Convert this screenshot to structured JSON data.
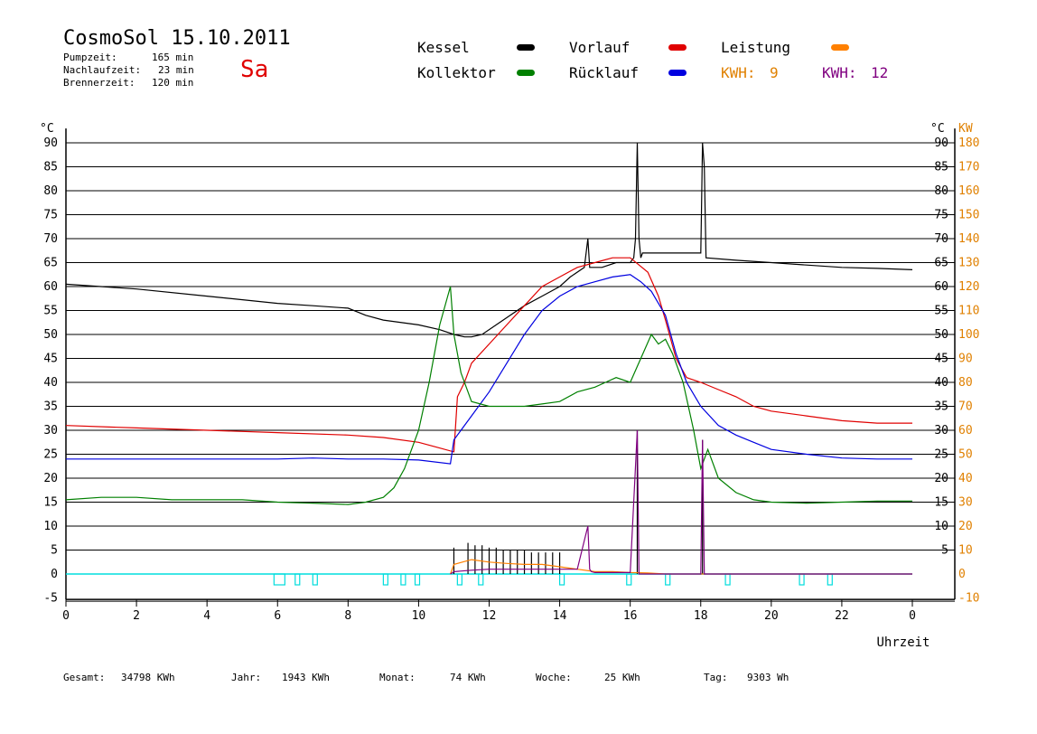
{
  "header": {
    "title": "CosmoSol 15.10.2011",
    "day": "Sa",
    "pump_label": "Pumpzeit:",
    "pump_value": "165 min",
    "nachlauf_label": "Nachlaufzeit:",
    "nachlauf_value": "23 min",
    "brenner_label": "Brennerzeit:",
    "brenner_value": "120 min"
  },
  "legend": {
    "kessel": "Kessel",
    "kollektor": "Kollektor",
    "vorlauf": "Vorlauf",
    "ruecklauf": "Rücklauf",
    "leistung": "Leistung",
    "kwh1_label": "KWH:",
    "kwh1_value": "9",
    "kwh2_label": "KWH:",
    "kwh2_value": "12"
  },
  "footer": {
    "gesamt_label": "Gesamt:",
    "gesamt_value": "34798 KWh",
    "jahr_label": "Jahr:",
    "jahr_value": "1943 KWh",
    "monat_label": "Monat:",
    "monat_value": "74 KWh",
    "woche_label": "Woche:",
    "woche_value": "25 KWh",
    "tag_label": "Tag:",
    "tag_value": "9303 Wh"
  },
  "colors": {
    "kessel": "#000000",
    "vorlauf": "#e00000",
    "ruecklauf": "#0000e0",
    "kollektor": "#008000",
    "leistung": "#ff8000",
    "kwh2": "#800080",
    "pump_marks": "#00dddd",
    "right_axis": "#e08000"
  },
  "chart_data": {
    "type": "line",
    "title": "CosmoSol 15.10.2011",
    "xlabel": "Uhrzeit",
    "ylabel_left": "°C",
    "ylabel_right": "KW",
    "ylim": [
      -5,
      93
    ],
    "xlim": [
      0,
      24
    ],
    "grid": true,
    "left_ticks": [
      "-5",
      "0",
      "5",
      "10",
      "15",
      "20",
      "25",
      "30",
      "35",
      "40",
      "45",
      "50",
      "55",
      "60",
      "65",
      "70",
      "75",
      "80",
      "85",
      "90"
    ],
    "right_ticks_c": [
      "5",
      "10",
      "15",
      "20",
      "25",
      "30",
      "35",
      "40",
      "45",
      "50",
      "55",
      "60",
      "65",
      "70",
      "75",
      "80",
      "85",
      "90"
    ],
    "right_ticks_kw": [
      "-10",
      "0",
      "10",
      "20",
      "30",
      "40",
      "50",
      "60",
      "70",
      "80",
      "90",
      "100",
      "110",
      "120",
      "130",
      "140",
      "150",
      "160",
      "170",
      "180"
    ],
    "x_ticks": [
      "0",
      "2",
      "4",
      "6",
      "8",
      "10",
      "12",
      "14",
      "16",
      "18",
      "20",
      "22",
      "0"
    ],
    "series": [
      {
        "name": "Kessel",
        "color": "#000000",
        "x": [
          0,
          2,
          4,
          6,
          7,
          8,
          8.5,
          9,
          10,
          10.6,
          11,
          11.3,
          11.5,
          11.8,
          12.2,
          12.6,
          13,
          13.5,
          14,
          14.3,
          14.7,
          14.8,
          14.85,
          15.2,
          15.6,
          16,
          16.1,
          16.15,
          16.2,
          16.25,
          16.3,
          16.35,
          16.4,
          17,
          17.5,
          18,
          18.02,
          18.05,
          18.1,
          18.15,
          19,
          20,
          21,
          22,
          23,
          24
        ],
        "y": [
          60.5,
          59.5,
          58,
          56.5,
          56,
          55.5,
          54,
          53,
          52,
          51,
          50,
          49.5,
          49.5,
          50,
          52,
          54,
          56,
          58,
          60,
          62,
          64,
          70,
          64,
          64,
          65,
          65,
          66,
          70,
          90,
          70,
          66,
          67,
          67,
          67,
          67,
          67,
          75,
          90,
          85,
          66,
          65.5,
          65,
          64.5,
          64,
          63.8,
          63.5
        ]
      },
      {
        "name": "Vorlauf",
        "color": "#e00000",
        "x": [
          0,
          2,
          4,
          6,
          8,
          9,
          10,
          10.5,
          11,
          11.1,
          11.3,
          11.5,
          12,
          12.5,
          13,
          13.5,
          14,
          14.5,
          15,
          15.5,
          16,
          16.5,
          16.8,
          17,
          17.3,
          17.6,
          18,
          18.5,
          19,
          19.5,
          20,
          21,
          22,
          23,
          24
        ],
        "y": [
          31,
          30.5,
          30,
          29.5,
          29,
          28.5,
          27.5,
          26.5,
          25.5,
          37,
          40,
          44,
          48,
          52,
          56,
          60,
          62,
          64,
          65,
          66,
          66,
          63,
          58,
          53,
          45,
          41,
          40,
          38.5,
          37,
          35,
          34,
          33,
          32,
          31.5,
          31.5
        ]
      },
      {
        "name": "Rücklauf",
        "color": "#0000e0",
        "x": [
          0,
          2,
          4,
          6,
          7,
          8,
          9,
          10,
          10.9,
          11,
          11.2,
          11.5,
          12,
          12.5,
          13,
          13.5,
          14,
          14.5,
          15,
          15.5,
          16,
          16.3,
          16.6,
          17,
          17.3,
          17.6,
          18,
          18.5,
          19,
          19.5,
          20,
          21,
          22,
          23,
          24
        ],
        "y": [
          24,
          24,
          24,
          24,
          24.2,
          24,
          24,
          23.8,
          23,
          28,
          30,
          33,
          38,
          44,
          50,
          55,
          58,
          60,
          61,
          62,
          62.5,
          61,
          59,
          54,
          46,
          40,
          35,
          31,
          29,
          27.5,
          26,
          25,
          24.2,
          24,
          24
        ]
      },
      {
        "name": "Kollektor",
        "color": "#008000",
        "x": [
          0,
          1,
          2,
          3,
          4,
          5,
          6,
          7,
          8,
          8.5,
          9,
          9.3,
          9.6,
          10,
          10.3,
          10.6,
          10.9,
          11,
          11.2,
          11.5,
          12,
          12.5,
          13,
          13.5,
          14,
          14.5,
          15,
          15.3,
          15.6,
          16,
          16.3,
          16.6,
          16.8,
          17,
          17.2,
          17.5,
          17.8,
          18,
          18.2,
          18.5,
          19,
          19.5,
          20,
          21,
          22,
          23,
          24
        ],
        "y": [
          15.5,
          16,
          16,
          15.5,
          15.5,
          15.5,
          15,
          14.8,
          14.5,
          15,
          16,
          18,
          22,
          30,
          40,
          52,
          60,
          50,
          42,
          36,
          35,
          35,
          35,
          35.5,
          36,
          38,
          39,
          40,
          41,
          40,
          45,
          50,
          48,
          49,
          46,
          40,
          30,
          22,
          26,
          20,
          17,
          15.5,
          15,
          14.8,
          15,
          15.2,
          15.2
        ]
      },
      {
        "name": "Leistung",
        "color": "#ff8000",
        "x": [
          10.9,
          11,
          11.5,
          12,
          12.5,
          13,
          13.5,
          14,
          14.5,
          15,
          15.5,
          16,
          16.5,
          17,
          18,
          19,
          24
        ],
        "y": [
          0,
          2,
          3,
          2.5,
          2.2,
          2,
          2,
          1.5,
          1,
          0.5,
          0.5,
          0.3,
          0.2,
          0,
          0,
          0,
          0
        ]
      },
      {
        "name": "KWH",
        "color": "#800080",
        "x": [
          10.9,
          11,
          11.5,
          12,
          12.5,
          13,
          13.5,
          14,
          14.5,
          14.8,
          14.85,
          14.9,
          15,
          16,
          16.2,
          16.25,
          16.3,
          17,
          18,
          18.05,
          18.1,
          19,
          24
        ],
        "y": [
          0,
          0.5,
          0.8,
          1,
          1,
          1,
          1,
          1,
          1,
          10,
          1,
          0.5,
          0.3,
          0.3,
          30,
          0,
          0,
          0,
          0,
          28,
          0,
          0,
          0
        ]
      }
    ],
    "spikes": [
      {
        "x": 11.0,
        "color": "#000000",
        "values": [
          5.5
        ]
      },
      {
        "x": 11.4,
        "color": "#000000",
        "values": [
          6.5
        ]
      },
      {
        "x": 11.6,
        "color": "#000000",
        "values": [
          6
        ]
      },
      {
        "x": 11.8,
        "color": "#000000",
        "values": [
          6
        ]
      },
      {
        "x": 12.0,
        "color": "#000000",
        "values": [
          5.5
        ]
      },
      {
        "x": 12.2,
        "color": "#000000",
        "values": [
          5.5
        ]
      },
      {
        "x": 12.4,
        "color": "#000000",
        "values": [
          5
        ]
      },
      {
        "x": 12.6,
        "color": "#000000",
        "values": [
          5
        ]
      },
      {
        "x": 12.8,
        "color": "#000000",
        "values": [
          5
        ]
      },
      {
        "x": 13.0,
        "color": "#000000",
        "values": [
          5
        ]
      },
      {
        "x": 13.2,
        "color": "#000000",
        "values": [
          4.5
        ]
      },
      {
        "x": 13.4,
        "color": "#000000",
        "values": [
          4.5
        ]
      },
      {
        "x": 13.6,
        "color": "#000000",
        "values": [
          4.5
        ]
      },
      {
        "x": 13.8,
        "color": "#000000",
        "values": [
          4.5
        ]
      },
      {
        "x": 14.0,
        "color": "#000000",
        "values": [
          4.5
        ]
      },
      {
        "x": 16.2,
        "color": "#000000",
        "values": [
          30
        ]
      },
      {
        "x": 18.05,
        "color": "#000000",
        "values": [
          28
        ]
      }
    ],
    "pump_marks_x": [
      5.9,
      6.5,
      7.0,
      9.0,
      9.5,
      9.9,
      11.1,
      11.7,
      14.0,
      15.9,
      17.0,
      18.7,
      20.8,
      21.6
    ]
  }
}
